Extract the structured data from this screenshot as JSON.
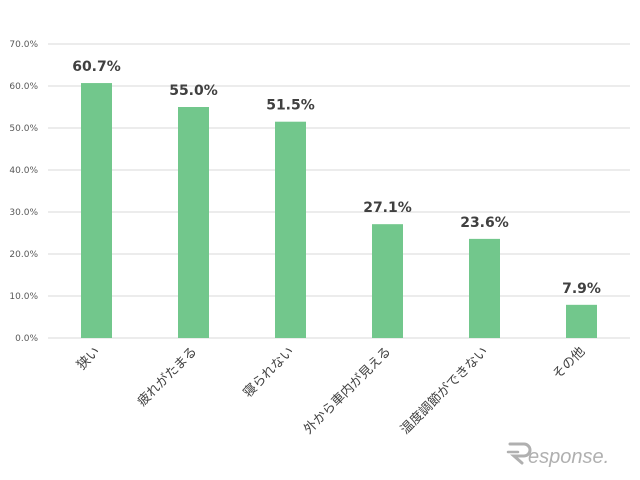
{
  "chart_data": {
    "type": "bar",
    "categories": [
      "狭い",
      "疲れがたまる",
      "寝られない",
      "外から車内が見える",
      "温度調節ができない",
      "その他"
    ],
    "values": [
      60.7,
      55.0,
      51.5,
      27.1,
      23.6,
      7.9
    ],
    "data_labels": [
      "60.7%",
      "55.0%",
      "51.5%",
      "27.1%",
      "23.6%",
      "7.9%"
    ],
    "yticks": [
      "0.0%",
      "10.0%",
      "20.0%",
      "30.0%",
      "40.0%",
      "50.0%",
      "60.0%",
      "70.0%"
    ],
    "ylim": [
      0,
      70
    ],
    "grid": true,
    "title": "",
    "xlabel": "",
    "ylabel": "",
    "bar_color": "#72c78c",
    "grid_color": "#d9d9d9"
  },
  "watermark": {
    "text": "esponse.",
    "color": "#b0b0b0"
  }
}
